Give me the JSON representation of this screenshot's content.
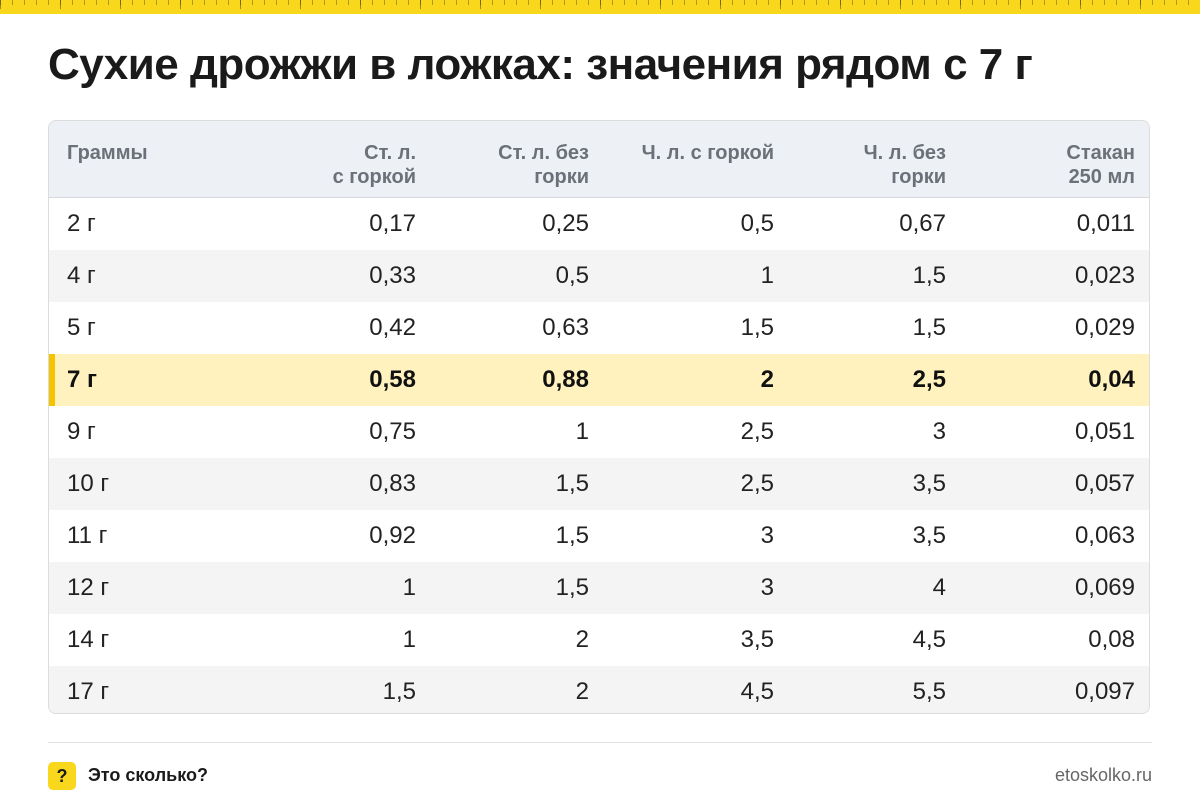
{
  "title": "Сухие дрожжи в ложках: значения рядом с 7 г",
  "colors": {
    "accent": "#f9d71c",
    "highlight_row": "#fff2bf",
    "header_bg": "#edf0f4"
  },
  "table": {
    "headers": [
      [
        "Граммы",
        ""
      ],
      [
        "Ст. л.",
        "с горкой"
      ],
      [
        "Ст. л. без",
        "горки"
      ],
      [
        "Ч. л. с горкой",
        ""
      ],
      [
        "Ч. л. без",
        "горки"
      ],
      [
        "Стакан",
        "250 мл"
      ]
    ],
    "highlighted_row": 3,
    "rows": [
      [
        "2 г",
        "0,17",
        "0,25",
        "0,5",
        "0,67",
        "0,011"
      ],
      [
        "4 г",
        "0,33",
        "0,5",
        "1",
        "1,5",
        "0,023"
      ],
      [
        "5 г",
        "0,42",
        "0,63",
        "1,5",
        "1,5",
        "0,029"
      ],
      [
        "7 г",
        "0,58",
        "0,88",
        "2",
        "2,5",
        "0,04"
      ],
      [
        "9 г",
        "0,75",
        "1",
        "2,5",
        "3",
        "0,051"
      ],
      [
        "10 г",
        "0,83",
        "1,5",
        "2,5",
        "3,5",
        "0,057"
      ],
      [
        "11 г",
        "0,92",
        "1,5",
        "3",
        "3,5",
        "0,063"
      ],
      [
        "12 г",
        "1",
        "1,5",
        "3",
        "4",
        "0,069"
      ],
      [
        "14 г",
        "1",
        "2",
        "3,5",
        "4,5",
        "0,08"
      ],
      [
        "17 г",
        "1,5",
        "2",
        "4,5",
        "5,5",
        "0,097"
      ]
    ]
  },
  "footer": {
    "badge_icon": "question-mark-icon",
    "badge_text": "?",
    "brand_name": "Это сколько?",
    "site": "etoskolko.ru"
  }
}
